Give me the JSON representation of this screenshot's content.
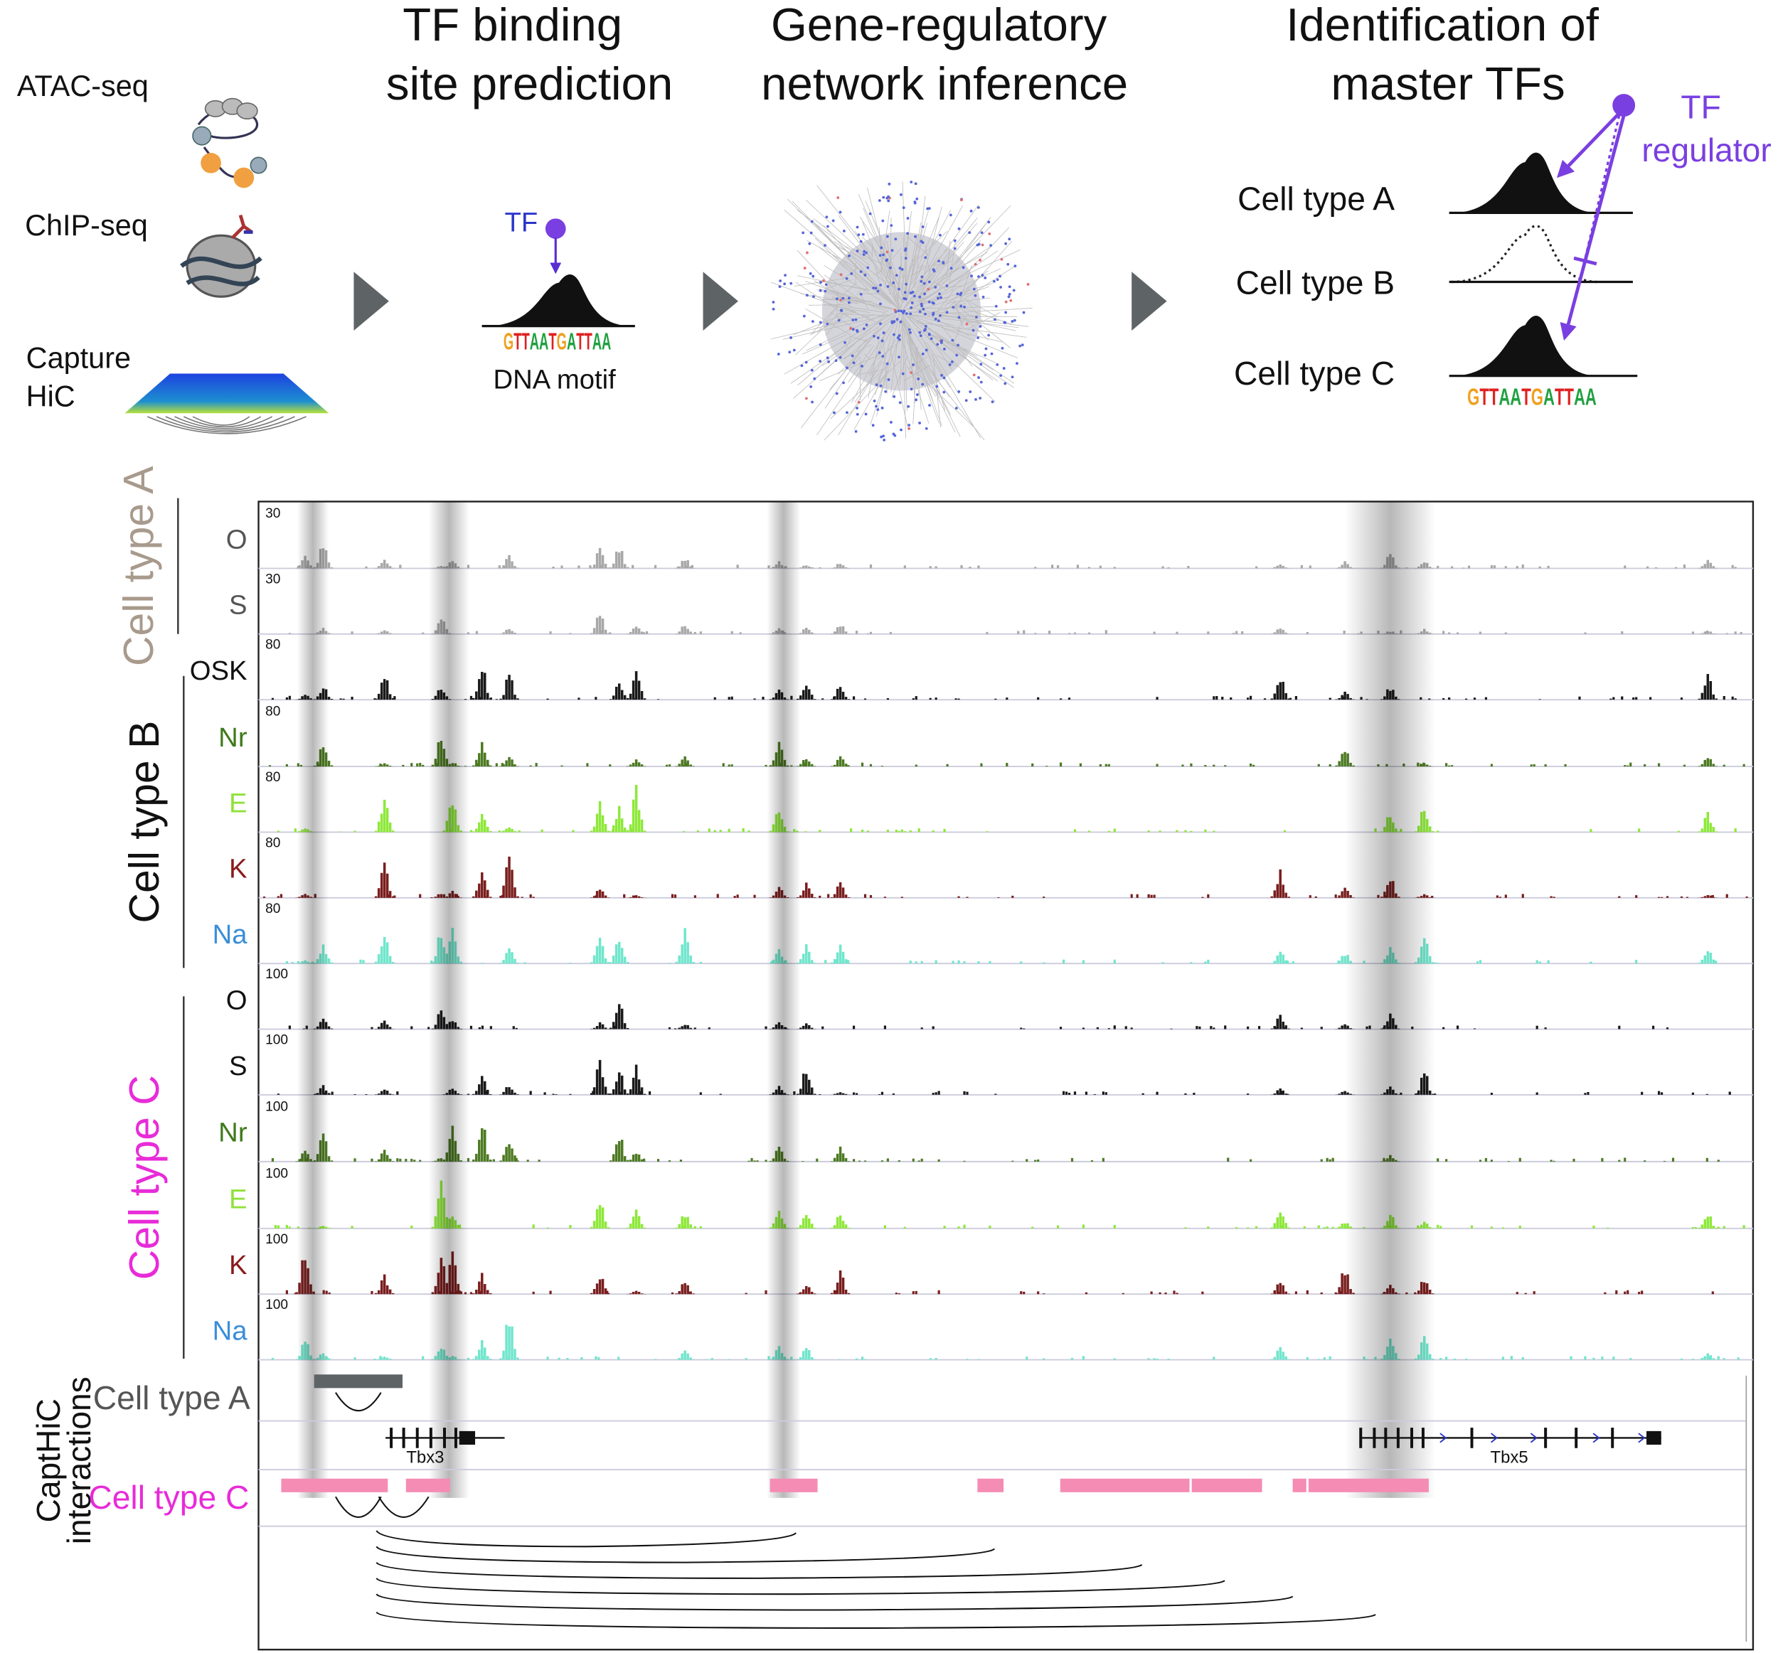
{
  "inputs": {
    "atac": "ATAC-seq",
    "chip": "ChIP-seq",
    "capture_hic": [
      "Capture",
      "HiC"
    ]
  },
  "steps": [
    {
      "title": [
        "TF binding",
        "site prediction"
      ],
      "tf": "TF",
      "motif": "GTTAATGATTAA",
      "motif_label": "DNA motif"
    },
    {
      "title": [
        "Gene-regulatory",
        "network inference"
      ]
    },
    {
      "title": [
        "Identification of",
        "master TFs"
      ],
      "regulator": [
        "TF",
        "regulator"
      ],
      "cell_types": [
        "Cell type A",
        "Cell type B",
        "Cell type C"
      ],
      "motif": "GTTAATGATTAA"
    }
  ],
  "track_groups": [
    {
      "name": "Cell type A",
      "tracks": [
        {
          "label": "O",
          "scale": 30
        },
        {
          "label": "S",
          "scale": 30
        }
      ]
    },
    {
      "name": "Cell type B",
      "tracks": [
        {
          "label": "OSK",
          "scale": 80
        },
        {
          "label": "Nr",
          "scale": 80
        },
        {
          "label": "E",
          "scale": 80
        },
        {
          "label": "K",
          "scale": 80
        },
        {
          "label": "Na",
          "scale": 80
        }
      ]
    },
    {
      "name": "Cell type C",
      "tracks": [
        {
          "label": "O",
          "scale": 100
        },
        {
          "label": "S",
          "scale": 100
        },
        {
          "label": "Nr",
          "scale": 100
        },
        {
          "label": "E",
          "scale": 100
        },
        {
          "label": "K",
          "scale": 100
        },
        {
          "label": "Na",
          "scale": 100
        }
      ]
    }
  ],
  "capthic": {
    "title": [
      "CaptHiC",
      "interactions"
    ],
    "rows": [
      "Cell type A",
      "Cell type C"
    ],
    "genes": [
      "Tbx3",
      "Tbx5"
    ]
  }
}
